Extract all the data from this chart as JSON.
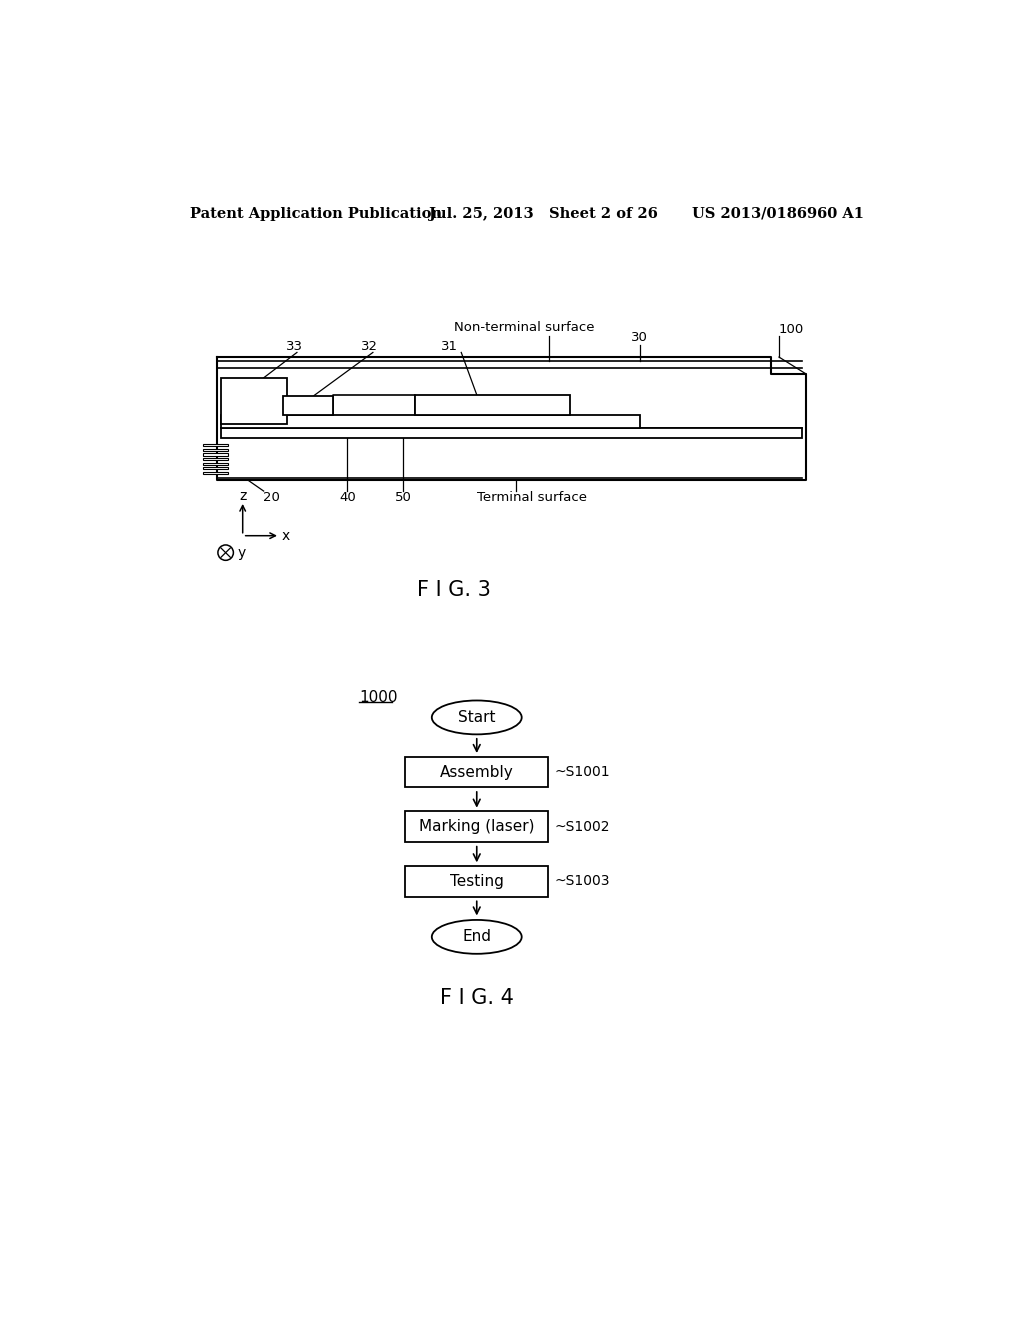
{
  "bg_color": "#ffffff",
  "header_left": "Patent Application Publication",
  "header_mid": "Jul. 25, 2013   Sheet 2 of 26",
  "header_right": "US 2013/0186960 A1",
  "fig3_caption": "F I G. 3",
  "fig4_caption": "F I G. 4",
  "fig3_label_100": "100",
  "fig3_label_30": "30",
  "fig3_label_31": "31",
  "fig3_label_32": "32",
  "fig3_label_33": "33",
  "fig3_label_20": "20",
  "fig3_label_40": "40",
  "fig3_label_50": "50",
  "fig3_nonterminal": "Non-terminal surface",
  "fig3_terminal": "Terminal surface",
  "fig4_label_1000": "1000",
  "flowchart_start": "Start",
  "flowchart_assembly": "Assembly",
  "flowchart_marking": "Marking (laser)",
  "flowchart_testing": "Testing",
  "flowchart_end": "End",
  "flowchart_s1001": "~S1001",
  "flowchart_s1002": "~S1002",
  "flowchart_s1003": "~S1003",
  "line_color": "#000000",
  "text_color": "#000000",
  "font_size_header": 10.5,
  "font_size_label": 9.5,
  "font_size_caption": 15,
  "font_size_flowchart": 11
}
